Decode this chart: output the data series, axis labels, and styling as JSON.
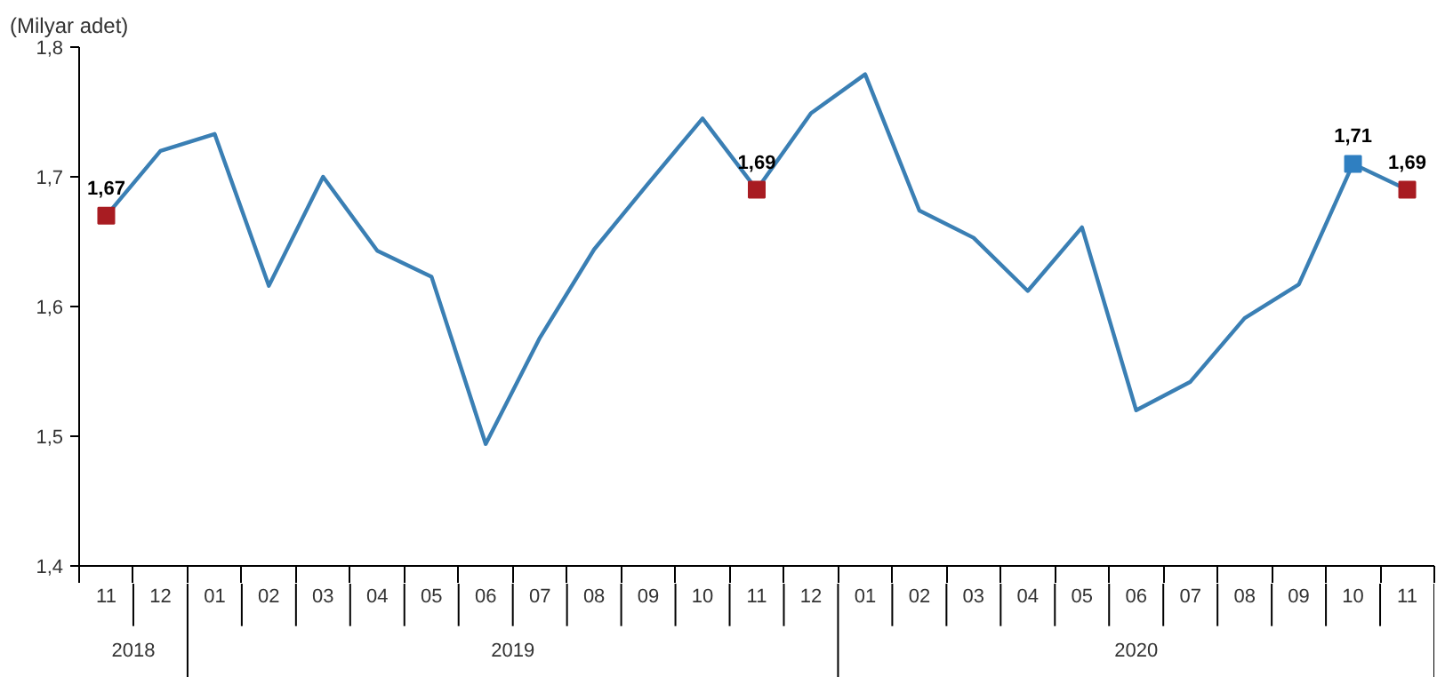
{
  "chart_data": {
    "type": "line",
    "ylabel": "(Milyar adet)",
    "categories": [
      "11",
      "12",
      "01",
      "02",
      "03",
      "04",
      "05",
      "06",
      "07",
      "08",
      "09",
      "10",
      "11",
      "12",
      "01",
      "02",
      "03",
      "04",
      "05",
      "06",
      "07",
      "08",
      "09",
      "10",
      "11"
    ],
    "annotations": [
      "2018",
      "2019",
      "2020"
    ],
    "series": [
      {
        "type": "line",
        "color": "#3a7fb4",
        "marker": "none",
        "values": [
          1.67,
          1.72,
          1.733,
          1.616,
          1.7,
          1.643,
          1.623,
          1.494,
          1.576,
          1.644,
          1.695,
          1.745,
          1.69,
          1.749,
          1.779,
          1.674,
          1.653,
          1.612,
          1.661,
          1.52,
          1.542,
          1.591,
          1.617,
          1.71,
          1.69
        ]
      },
      {
        "type": "scatter",
        "marker": "square",
        "colors": [
          "#a81c22",
          null,
          null,
          null,
          null,
          null,
          null,
          null,
          null,
          null,
          null,
          null,
          "#a81c22",
          null,
          null,
          null,
          null,
          null,
          null,
          null,
          null,
          null,
          null,
          "#2f7fc1",
          "#a81c22"
        ],
        "values": [
          1.67,
          null,
          null,
          null,
          null,
          null,
          null,
          null,
          null,
          null,
          null,
          null,
          1.69,
          null,
          null,
          null,
          null,
          null,
          null,
          null,
          null,
          null,
          null,
          1.71,
          1.69
        ],
        "value_labels": [
          "1,67",
          null,
          null,
          null,
          null,
          null,
          null,
          null,
          null,
          null,
          null,
          null,
          "1,69",
          null,
          null,
          null,
          null,
          null,
          null,
          null,
          null,
          null,
          null,
          "1,71",
          "1,69"
        ]
      }
    ],
    "ylim": [
      1.4,
      1.8
    ],
    "yticks": [
      {
        "value": 1.4,
        "label": "1,4"
      },
      {
        "value": 1.5,
        "label": "1,5"
      },
      {
        "value": 1.6,
        "label": "1,6"
      },
      {
        "value": 1.7,
        "label": "1,7"
      },
      {
        "value": 1.8,
        "label": "1,8"
      }
    ]
  }
}
